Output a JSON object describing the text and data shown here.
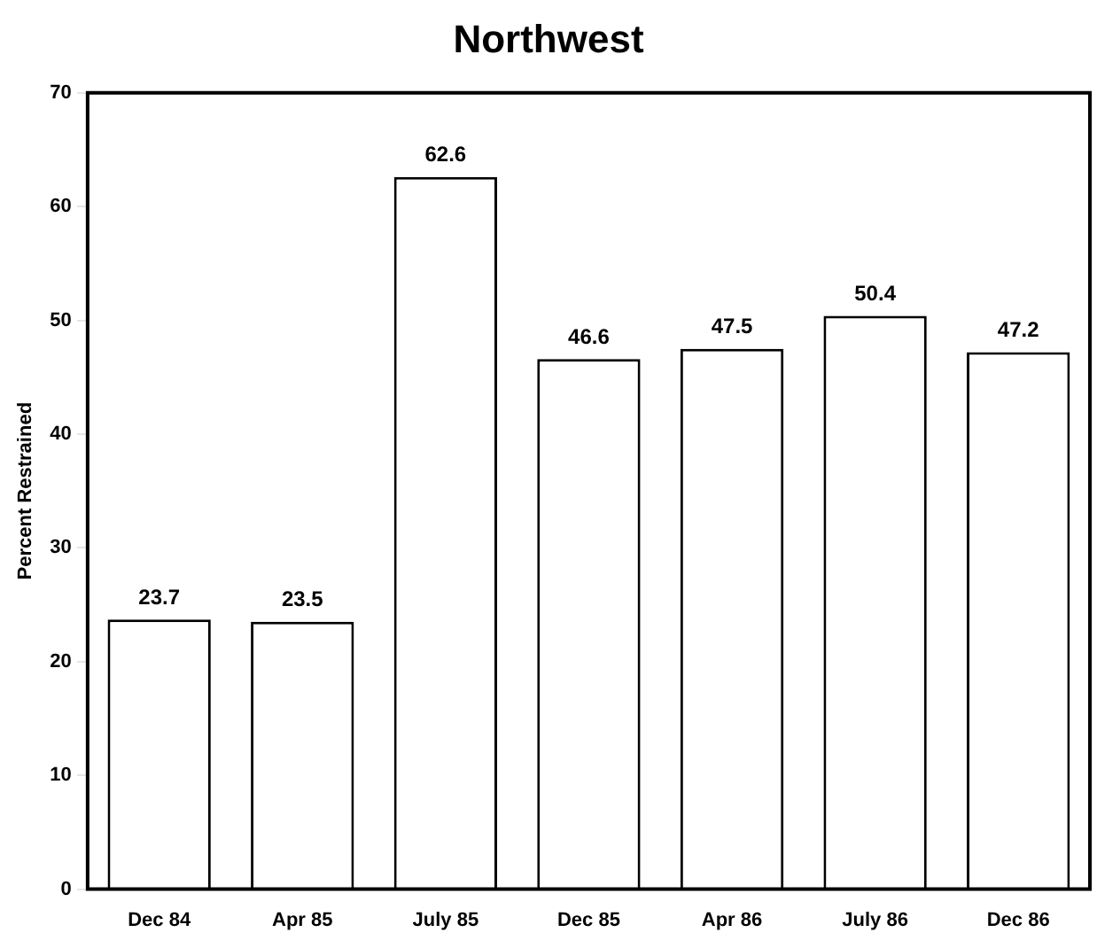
{
  "chart_data": {
    "type": "bar",
    "title": "Northwest",
    "ylabel": "Percent Restrained",
    "categories": [
      "Dec 84",
      "Apr 85",
      "July 85",
      "Dec 85",
      "Apr 86",
      "July 86",
      "Dec 86"
    ],
    "values": [
      23.7,
      23.5,
      62.6,
      46.6,
      47.5,
      50.4,
      47.2
    ],
    "color": "#ffffff",
    "ylim": [
      0,
      70
    ],
    "yticks": [
      0,
      10,
      20,
      30,
      40,
      50,
      60,
      70
    ],
    "grid": false,
    "data_labels": true,
    "legend": false
  }
}
